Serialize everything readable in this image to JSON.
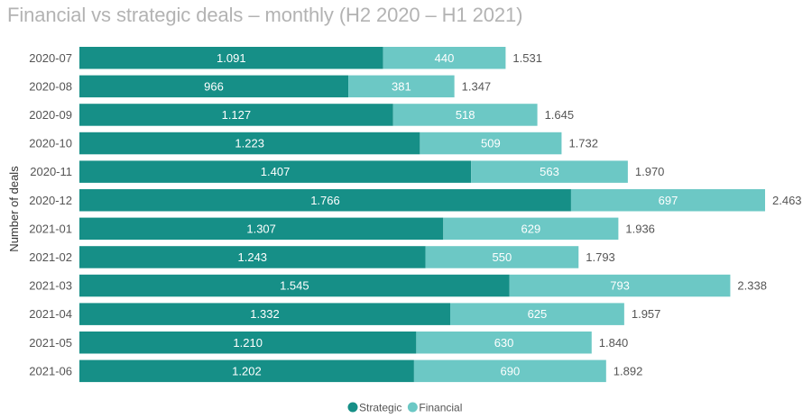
{
  "chart_data": {
    "type": "bar",
    "orientation": "horizontal",
    "stacked": true,
    "title": "Financial vs strategic deals – monthly (H2 2020 – H1 2021)",
    "xlabel": "",
    "ylabel": "Number of deals",
    "xlim": [
      0,
      2463
    ],
    "grid": false,
    "legend_position": "bottom-center",
    "categories": [
      "2020-07",
      "2020-08",
      "2020-09",
      "2020-10",
      "2020-11",
      "2020-12",
      "2021-01",
      "2021-02",
      "2021-03",
      "2021-04",
      "2021-05",
      "2021-06"
    ],
    "series": [
      {
        "name": "Strategic",
        "color": "#168f87",
        "values": [
          1091,
          966,
          1127,
          1223,
          1407,
          1766,
          1307,
          1243,
          1545,
          1332,
          1210,
          1202
        ],
        "labels": [
          "1.091",
          "966",
          "1.127",
          "1.223",
          "1.407",
          "1.766",
          "1.307",
          "1.243",
          "1.545",
          "1.332",
          "1.210",
          "1.202"
        ]
      },
      {
        "name": "Financial",
        "color": "#6cc8c5",
        "values": [
          440,
          381,
          518,
          509,
          563,
          697,
          629,
          550,
          793,
          625,
          630,
          690
        ],
        "labels": [
          "440",
          "381",
          "518",
          "509",
          "563",
          "697",
          "629",
          "550",
          "793",
          "625",
          "630",
          "690"
        ]
      }
    ],
    "totals": [
      1531,
      1347,
      1645,
      1732,
      1970,
      2463,
      1936,
      1793,
      2338,
      1957,
      1840,
      1892
    ],
    "total_labels": [
      "1.531",
      "1.347",
      "1.645",
      "1.732",
      "1.970",
      "2.463",
      "1.936",
      "1.793",
      "2.338",
      "1.957",
      "1.840",
      "1.892"
    ]
  }
}
